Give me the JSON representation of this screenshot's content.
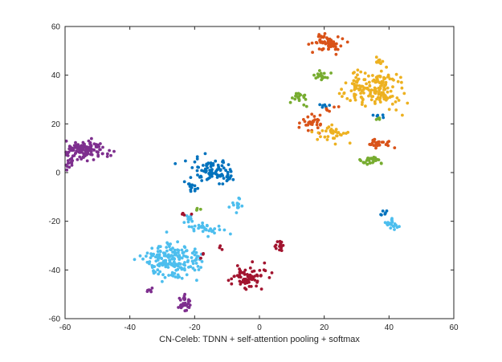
{
  "chart_data": {
    "type": "scatter",
    "title": "",
    "xlabel": "CN-Celeb: TDNN + self-attention pooling + softmax",
    "ylabel": "",
    "xlim": [
      -60,
      60
    ],
    "ylim": [
      -60,
      60
    ],
    "x_ticks": [
      -60,
      -40,
      -20,
      0,
      20,
      40,
      60
    ],
    "y_ticks": [
      -60,
      -40,
      -20,
      0,
      20,
      40,
      60
    ],
    "grid": false,
    "legend": "none",
    "colors": {
      "blue": "#0072BD",
      "orange": "#D95319",
      "yellow": "#EDB120",
      "purple": "#7E2F8E",
      "green": "#77AC30",
      "light_blue": "#4DBEEE",
      "dark_red": "#A2142F"
    },
    "clusters": [
      {
        "color": "purple",
        "cx": -54,
        "cy": 9,
        "sx": 3.5,
        "sy": 2.0,
        "n": 130
      },
      {
        "color": "purple",
        "cx": -58,
        "cy": 4,
        "sx": 1.2,
        "sy": 2.0,
        "n": 20
      },
      {
        "color": "purple",
        "cx": -34,
        "cy": -48,
        "sx": 0.5,
        "sy": 0.5,
        "n": 6
      },
      {
        "color": "purple",
        "cx": -23,
        "cy": -54,
        "sx": 1.2,
        "sy": 1.5,
        "n": 30
      },
      {
        "color": "blue",
        "cx": -14,
        "cy": 0,
        "sx": 3.0,
        "sy": 2.5,
        "n": 90
      },
      {
        "color": "blue",
        "cx": -21,
        "cy": -5,
        "sx": 1.0,
        "sy": 1.5,
        "n": 14
      },
      {
        "color": "blue",
        "cx": 20,
        "cy": 27,
        "sx": 0.8,
        "sy": 0.6,
        "n": 6
      },
      {
        "color": "blue",
        "cx": 37,
        "cy": 23,
        "sx": 0.6,
        "sy": 0.5,
        "n": 5
      },
      {
        "color": "blue",
        "cx": 38,
        "cy": -17,
        "sx": 0.6,
        "sy": 0.6,
        "n": 6
      },
      {
        "color": "light_blue",
        "cx": -27,
        "cy": -36,
        "sx": 4.5,
        "sy": 3.5,
        "n": 190
      },
      {
        "color": "light_blue",
        "cx": -17,
        "cy": -23,
        "sx": 3.0,
        "sy": 1.2,
        "n": 30
      },
      {
        "color": "light_blue",
        "cx": -22,
        "cy": -19,
        "sx": 1.0,
        "sy": 1.0,
        "n": 10
      },
      {
        "color": "light_blue",
        "cx": -7,
        "cy": -13,
        "sx": 1.2,
        "sy": 1.8,
        "n": 14
      },
      {
        "color": "light_blue",
        "cx": 41,
        "cy": -21,
        "sx": 1.0,
        "sy": 1.2,
        "n": 25
      },
      {
        "color": "dark_red",
        "cx": -4,
        "cy": -43,
        "sx": 2.5,
        "sy": 2.0,
        "n": 80
      },
      {
        "color": "dark_red",
        "cx": 6,
        "cy": -30,
        "sx": 0.8,
        "sy": 1.0,
        "n": 15
      },
      {
        "color": "dark_red",
        "cx": -23,
        "cy": -17,
        "sx": 1.0,
        "sy": 0.4,
        "n": 5
      },
      {
        "color": "dark_red",
        "cx": -12,
        "cy": -31,
        "sx": 0.4,
        "sy": 0.4,
        "n": 3
      },
      {
        "color": "dark_red",
        "cx": -18,
        "cy": -34,
        "sx": 0.4,
        "sy": 0.4,
        "n": 3
      },
      {
        "color": "orange",
        "cx": 21,
        "cy": 53,
        "sx": 2.0,
        "sy": 1.8,
        "n": 60
      },
      {
        "color": "orange",
        "cx": 16,
        "cy": 20,
        "sx": 1.8,
        "sy": 1.8,
        "n": 30
      },
      {
        "color": "orange",
        "cx": 37,
        "cy": 12,
        "sx": 2.8,
        "sy": 1.0,
        "n": 30
      },
      {
        "color": "orange",
        "cx": 22,
        "cy": 26,
        "sx": 1.0,
        "sy": 0.6,
        "n": 6
      },
      {
        "color": "yellow",
        "cx": 36,
        "cy": 35,
        "sx": 4.0,
        "sy": 4.0,
        "n": 170
      },
      {
        "color": "yellow",
        "cx": 37,
        "cy": 46,
        "sx": 0.6,
        "sy": 0.6,
        "n": 12
      },
      {
        "color": "yellow",
        "cx": 23,
        "cy": 16,
        "sx": 2.8,
        "sy": 2.0,
        "n": 35
      },
      {
        "color": "green",
        "cx": 19,
        "cy": 40,
        "sx": 1.0,
        "sy": 1.0,
        "n": 20
      },
      {
        "color": "green",
        "cx": 12,
        "cy": 31,
        "sx": 1.2,
        "sy": 1.5,
        "n": 20
      },
      {
        "color": "green",
        "cx": 34,
        "cy": 5,
        "sx": 1.5,
        "sy": 1.0,
        "n": 30
      },
      {
        "color": "green",
        "cx": 37,
        "cy": 22,
        "sx": 0.5,
        "sy": 0.5,
        "n": 4
      },
      {
        "color": "green",
        "cx": -19,
        "cy": -15,
        "sx": 0.5,
        "sy": 0.4,
        "n": 4
      }
    ]
  }
}
